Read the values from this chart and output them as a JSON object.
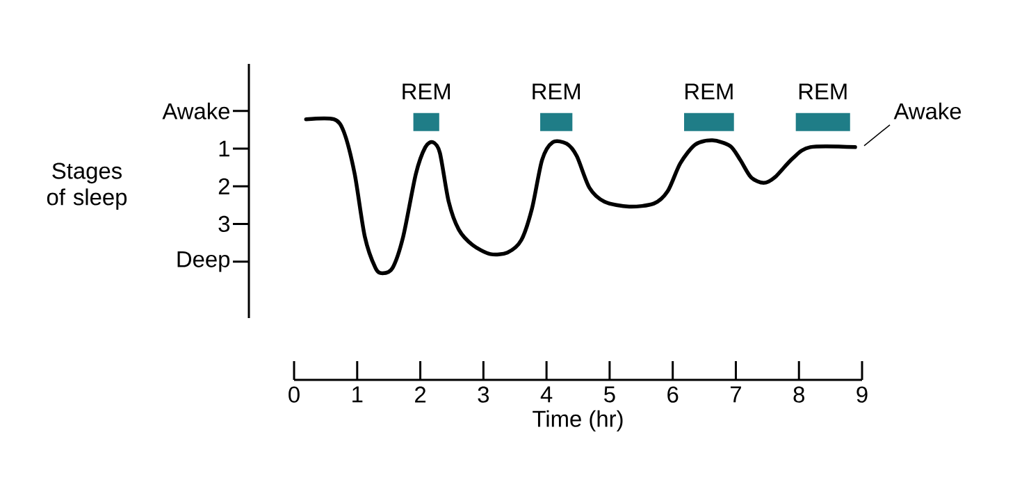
{
  "chart_data": {
    "type": "line",
    "ylabel": "Stages of sleep",
    "xlabel": "Time (hr)",
    "xlim": [
      0,
      9
    ],
    "xticks": [
      0,
      1,
      2,
      3,
      4,
      5,
      6,
      7,
      8,
      9
    ],
    "ylim": [
      5.5,
      -1.25
    ],
    "yticks": [
      {
        "value": 0,
        "label": "Awake"
      },
      1,
      2,
      3,
      {
        "value": 4,
        "label": "Deep"
      }
    ],
    "x": [
      0.19,
      0.63,
      0.79,
      0.96,
      1.12,
      1.29,
      1.4,
      1.56,
      1.73,
      1.93,
      2.08,
      2.2,
      2.31,
      2.45,
      2.61,
      2.83,
      3.11,
      3.38,
      3.6,
      3.77,
      3.93,
      4.1,
      4.32,
      4.48,
      4.68,
      4.92,
      5.31,
      5.7,
      5.92,
      6.12,
      6.36,
      6.63,
      6.91,
      7.07,
      7.24,
      7.44,
      7.62,
      7.9,
      8.18,
      8.89
    ],
    "values": [
      0.22,
      0.22,
      0.56,
      1.67,
      3.33,
      4.17,
      4.31,
      4.17,
      3.33,
      1.67,
      0.96,
      0.83,
      1.11,
      2.41,
      3.15,
      3.56,
      3.8,
      3.76,
      3.43,
      2.59,
      1.3,
      0.83,
      0.87,
      1.2,
      2.04,
      2.41,
      2.54,
      2.46,
      2.13,
      1.39,
      0.89,
      0.78,
      0.93,
      1.3,
      1.76,
      1.91,
      1.76,
      1.26,
      0.96,
      0.96
    ],
    "color": "#000000",
    "bands": [
      {
        "axis": "x",
        "from": 1.89,
        "to": 2.3,
        "label": "REM",
        "color": "#1f7d87"
      },
      {
        "axis": "x",
        "from": 3.9,
        "to": 4.41,
        "label": "REM",
        "color": "#1f7d87"
      },
      {
        "axis": "x",
        "from": 6.18,
        "to": 6.97,
        "label": "REM",
        "color": "#1f7d87"
      },
      {
        "axis": "x",
        "from": 7.95,
        "to": 8.81,
        "label": "REM",
        "color": "#1f7d87"
      }
    ],
    "annotations": [
      {
        "text": "Awake",
        "x": 8.89,
        "y": 0.96
      }
    ]
  }
}
